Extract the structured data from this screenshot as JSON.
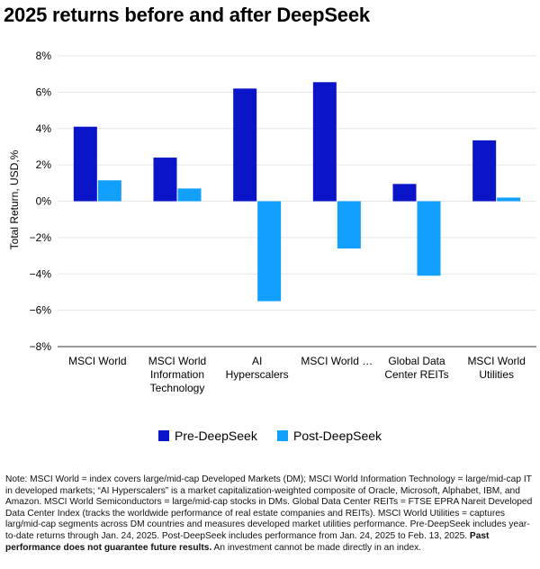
{
  "title": "2025 returns before and after DeepSeek",
  "colors": {
    "pre": "#0a14c8",
    "post": "#12a0ff",
    "grid": "#e6e6e6",
    "axis": "#333333"
  },
  "chart_data": {
    "type": "bar",
    "title": "2025 returns before and after DeepSeek",
    "ylabel": "Total Return, USD,%",
    "xlabel": "",
    "ylim": [
      -8,
      8
    ],
    "yticks": [
      8,
      6,
      4,
      2,
      0,
      -2,
      -4,
      -6,
      -8
    ],
    "ytick_labels": [
      "8%",
      "6%",
      "4%",
      "2%",
      "0%",
      "−2%",
      "−4%",
      "−6%",
      "−8%"
    ],
    "grid": true,
    "legend_position": "bottom-center",
    "categories": [
      [
        "MSCI World"
      ],
      [
        "MSCI World",
        "Information",
        "Technology"
      ],
      [
        "AI",
        "Hyperscalers"
      ],
      [
        "MSCI World …"
      ],
      [
        "Global Data",
        "Center REITs"
      ],
      [
        "MSCI World",
        "Utilities"
      ]
    ],
    "series": [
      {
        "name": "Pre-DeepSeek",
        "values": [
          4.1,
          2.4,
          6.2,
          6.55,
          0.95,
          3.35
        ]
      },
      {
        "name": "Post-DeepSeek",
        "values": [
          1.15,
          0.7,
          -5.5,
          -2.6,
          -4.1,
          0.2
        ]
      }
    ]
  },
  "note": {
    "text": "Note: MSCI World = index covers large/mid-cap Developed Markets (DM); MSCI World Information Technology = large/mid-cap IT in developed markets; “AI Hyperscalers” is a market capitalization-weighted composite of Oracle, Microsoft, Alphabet, IBM, and Amazon. MSCI World Semiconductors = large/mid-cap stocks in DMs. Global Data Center REITs = FTSE EPRA Nareit Developed Data Center Index (tracks the worldwide performance of real estate companies and REITs). MSCI World Utilities = captures larg/mid-cap segments across DM countries and measures developed market utilities performance. Pre-DeepSeek includes year-to-date returns through Jan. 24, 2025. Post-DeepSeek includes performance from Jan. 24,  2025 to Feb. 13, 2025. ",
    "bold": "Past performance does not guarantee future results.",
    "tail": " An investment cannot be made directly in an index."
  }
}
